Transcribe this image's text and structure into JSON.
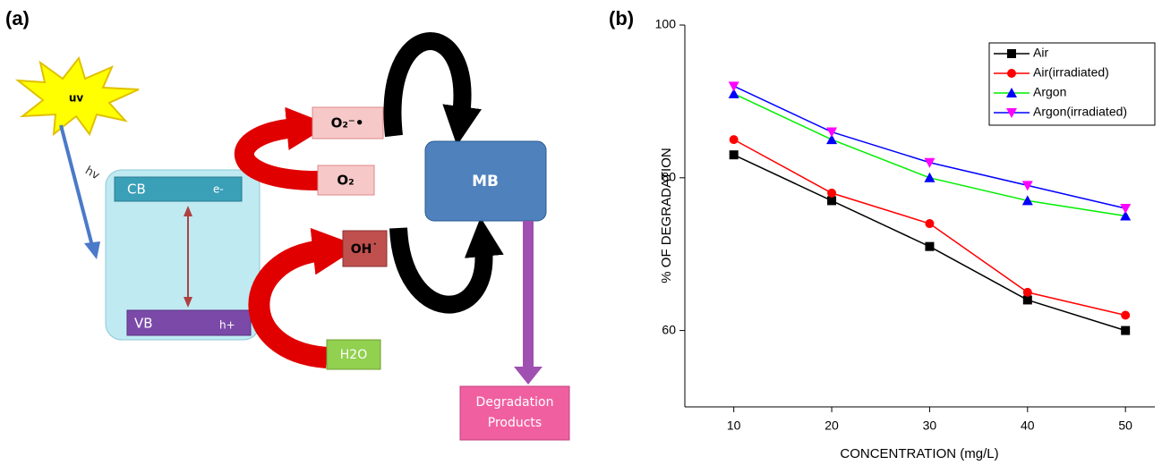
{
  "panel_a": {
    "label": "(a)",
    "uv": "uv",
    "hv": "hv",
    "cb": "CB",
    "electron": "e-",
    "vb": "VB",
    "hole": "h+",
    "superoxide": "O₂⁻•",
    "oxygen": "O₂",
    "hydroxyl": "OH˙",
    "water": "H2O",
    "mb": "MB",
    "products": [
      "Degradation",
      "Products"
    ]
  },
  "chart_data": {
    "type": "line",
    "panel_label": "(b)",
    "x_label": "CONCENTRATION (mg/L)",
    "y_label": "% OF DEGRADATION",
    "x": [
      10,
      20,
      30,
      40,
      50
    ],
    "xlim": [
      5,
      53
    ],
    "xticks": [
      10,
      20,
      30,
      40,
      50
    ],
    "ylim": [
      50,
      100
    ],
    "yticks": [
      60,
      80,
      100
    ],
    "legend": "upper right",
    "series": [
      {
        "name": "Air",
        "color": "#000000",
        "marker_color": "#000000",
        "marker": "square",
        "values": [
          83,
          77,
          71,
          64,
          60
        ]
      },
      {
        "name": "Air(irradiated)",
        "color": "#ff0000",
        "marker_color": "#ff0000",
        "marker": "circle",
        "values": [
          85,
          78,
          74,
          65,
          62
        ]
      },
      {
        "name": "Argon",
        "color": "#00ee00",
        "marker_color": "#0000ff",
        "marker": "triangle-up",
        "values": [
          91,
          85,
          80,
          77,
          75
        ]
      },
      {
        "name": "Argon(irradiated)",
        "color": "#0000ff",
        "marker_color": "#ff00ff",
        "marker": "triangle-down",
        "values": [
          92,
          86,
          82,
          79,
          76
        ]
      }
    ]
  }
}
